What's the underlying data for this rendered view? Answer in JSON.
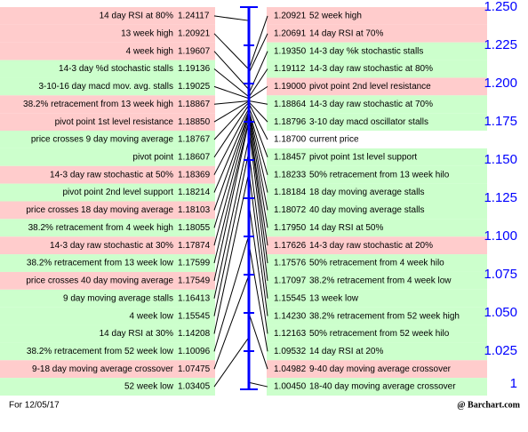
{
  "chart_data": {
    "type": "cheat-sheet",
    "ylim": [
      1,
      1.25
    ],
    "yticks": [
      {
        "value": 1.25,
        "label": "1.250"
      },
      {
        "value": 1.225,
        "label": "1.225"
      },
      {
        "value": 1.2,
        "label": "1.200"
      },
      {
        "value": 1.175,
        "label": "1.175"
      },
      {
        "value": 1.15,
        "label": "1.150"
      },
      {
        "value": 1.125,
        "label": "1.125"
      },
      {
        "value": 1.1,
        "label": "1.100"
      },
      {
        "value": 1.075,
        "label": "1.075"
      },
      {
        "value": 1.05,
        "label": "1.050"
      },
      {
        "value": 1.025,
        "label": "1.025"
      },
      1
    ],
    "axis_color": "#0000ff",
    "left": {
      "labels": [
        "14 day RSI at 80%",
        "13 week high",
        "4 week high",
        "14-3 day %d stochastic stalls",
        "3-10-16 day macd mov. avg. stalls",
        "38.2% retracement from 13 week high",
        "pivot point 1st level resistance",
        "price crosses 9 day moving average",
        "pivot point",
        "14-3 day raw stochastic at 50%",
        "pivot point 2nd level support",
        "price crosses 18 day moving average",
        "38.2% retracement from 4 week high",
        "14-3 day raw stochastic at 30%",
        "38.2% retracement from 13 week low",
        "price crosses 40 day moving average",
        "9 day moving average stalls",
        "4 week low",
        "14 day RSI at 30%",
        "38.2% retracement from 52 week low",
        "9-18 day moving average crossover",
        "52 week low"
      ],
      "values": [
        1.24117,
        1.20921,
        1.19607,
        1.19136,
        1.19025,
        1.18867,
        1.1885,
        1.18767,
        1.18607,
        1.18369,
        1.18214,
        1.18103,
        1.18055,
        1.17874,
        1.17599,
        1.17549,
        1.16413,
        1.15545,
        1.14208,
        1.10096,
        1.07475,
        1.03405
      ],
      "value_labels": [
        "1.24117",
        "1.20921",
        "1.19607",
        "1.19136",
        "1.19025",
        "1.18867",
        "1.18850",
        "1.18767",
        "1.18607",
        "1.18369",
        "1.18214",
        "1.18103",
        "1.18055",
        "1.17874",
        "1.17599",
        "1.17549",
        "1.16413",
        "1.15545",
        "1.14208",
        "1.10096",
        "1.07475",
        "1.03405"
      ],
      "colors": [
        "#ffcccc",
        "#ffcccc",
        "#ffcccc",
        "#ccffcc",
        "#ccffcc",
        "#ffcccc",
        "#ffcccc",
        "#ccffcc",
        "#ccffcc",
        "#ffcccc",
        "#ccffcc",
        "#ffcccc",
        "#ccffcc",
        "#ffcccc",
        "#ccffcc",
        "#ffcccc",
        "#ccffcc",
        "#ccffcc",
        "#ccffcc",
        "#ccffcc",
        "#ffcccc",
        "#ccffcc"
      ]
    },
    "right": {
      "labels": [
        "52 week high",
        "14 day RSI at 70%",
        "14-3 day %k stochastic stalls",
        "14-3 day raw stochastic at 80%",
        "pivot point 2nd level resistance",
        "14-3 day raw stochastic at 70%",
        "3-10 day macd oscillator stalls",
        "current price",
        "pivot point 1st level support",
        "50% retracement from 13 week hilo",
        "18 day moving average stalls",
        "40 day moving average stalls",
        "14 day RSI at 50%",
        "14-3 day raw stochastic at 20%",
        "50% retracement from 4 week hilo",
        "38.2% retracement from 4 week low",
        "13 week low",
        "38.2% retracement from 52 week high",
        "50% retracement from 52 week hilo",
        "14 day RSI at 20%",
        "9-40 day moving average crossover",
        "18-40 day moving average crossover"
      ],
      "values": [
        1.20921,
        1.20691,
        1.1935,
        1.19112,
        1.19,
        1.18864,
        1.18796,
        1.187,
        1.18457,
        1.18233,
        1.18184,
        1.18072,
        1.1795,
        1.17626,
        1.17576,
        1.17097,
        1.15545,
        1.1423,
        1.12163,
        1.09532,
        1.04982,
        1.0045
      ],
      "value_labels": [
        "1.20921",
        "1.20691",
        "1.19350",
        "1.19112",
        "1.19000",
        "1.18864",
        "1.18796",
        "1.18700",
        "1.18457",
        "1.18233",
        "1.18184",
        "1.18072",
        "1.17950",
        "1.17626",
        "1.17576",
        "1.17097",
        "1.15545",
        "1.14230",
        "1.12163",
        "1.09532",
        "1.04982",
        "1.00450"
      ],
      "colors": [
        "#ffcccc",
        "#ffcccc",
        "#ccffcc",
        "#ccffcc",
        "#ffcccc",
        "#ccffcc",
        "#ccffcc",
        "#ffffff",
        "#ccffcc",
        "#ccffcc",
        "#ccffcc",
        "#ccffcc",
        "#ccffcc",
        "#ffcccc",
        "#ccffcc",
        "#ccffcc",
        "#ccffcc",
        "#ccffcc",
        "#ccffcc",
        "#ccffcc",
        "#ffcccc",
        "#ccffcc"
      ]
    },
    "footer_left": "For 12/05/17",
    "footer_right": "@ Barchart.com"
  }
}
